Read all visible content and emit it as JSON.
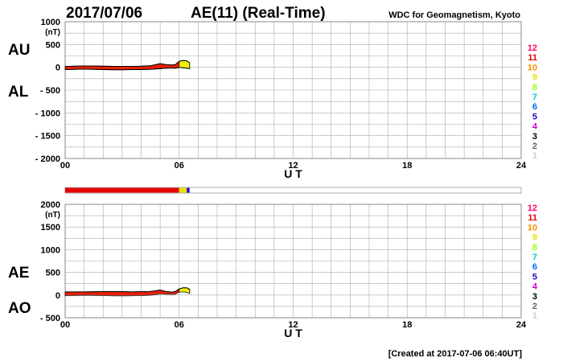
{
  "header": {
    "date": "2017/07/06",
    "title": "AE(11) (Real-Time)",
    "source": "WDC for Geomagnetism, Kyoto"
  },
  "footer": {
    "created": "[Created at 2017-07-06 06:40UT]"
  },
  "legend": {
    "labels": [
      "12",
      "11",
      "10",
      "9",
      "8",
      "7",
      "6",
      "5",
      "4",
      "3",
      "2",
      "1"
    ],
    "colors": [
      "#ff0066",
      "#e60000",
      "#ff8c00",
      "#e6e600",
      "#99ff00",
      "#00cccc",
      "#0066ff",
      "#3300cc",
      "#cc00cc",
      "#000000",
      "#666666",
      "#cccccc"
    ]
  },
  "chart_data": [
    {
      "type": "area",
      "xlabel": "U T",
      "unit": "(nT)",
      "x_ticks": [
        "00",
        "06",
        "12",
        "18",
        "24"
      ],
      "xlim": [
        0,
        24
      ],
      "ylim": [
        -2000,
        1000
      ],
      "y_ticks": [
        1000,
        500,
        0,
        -500,
        -1000,
        -1500,
        -2000
      ],
      "y_tick_labels": [
        "1000",
        "500",
        "0",
        "- 500",
        "- 1000",
        "- 1500",
        "- 2000"
      ],
      "grid": true,
      "side_labels": [
        "AU",
        "AL"
      ],
      "series": [
        {
          "name": "AU",
          "x": [
            0.0,
            0.5,
            1.0,
            1.5,
            2.0,
            2.5,
            3.0,
            3.5,
            4.0,
            4.5,
            5.0,
            5.3,
            5.6,
            5.8,
            6.0,
            6.2,
            6.4,
            6.55
          ],
          "values": [
            20,
            25,
            30,
            28,
            25,
            22,
            20,
            20,
            25,
            35,
            80,
            60,
            50,
            60,
            130,
            150,
            140,
            100
          ]
        },
        {
          "name": "AL",
          "x": [
            0.0,
            0.5,
            1.0,
            1.5,
            2.0,
            2.5,
            3.0,
            3.5,
            4.0,
            4.5,
            5.0,
            5.3,
            5.6,
            5.8,
            6.0,
            6.2,
            6.4,
            6.55
          ],
          "values": [
            -50,
            -45,
            -40,
            -45,
            -50,
            -55,
            -55,
            -50,
            -50,
            -45,
            -30,
            -20,
            -15,
            -20,
            -5,
            -10,
            -20,
            -30
          ]
        }
      ]
    },
    {
      "type": "area",
      "xlabel": "U T",
      "unit": "(nT)",
      "x_ticks": [
        "00",
        "06",
        "12",
        "18",
        "24"
      ],
      "xlim": [
        0,
        24
      ],
      "ylim": [
        -500,
        2000
      ],
      "y_ticks": [
        2000,
        1500,
        1000,
        500,
        0,
        -500
      ],
      "y_tick_labels": [
        "2000",
        "1500",
        "1000",
        "500",
        "0",
        "- 500"
      ],
      "grid": true,
      "side_labels": [
        "AE",
        "AO"
      ],
      "series": [
        {
          "name": "AE",
          "x": [
            0.0,
            0.5,
            1.0,
            1.5,
            2.0,
            2.5,
            3.0,
            3.5,
            4.0,
            4.5,
            5.0,
            5.3,
            5.6,
            5.8,
            6.0,
            6.2,
            6.4,
            6.55
          ],
          "values": [
            70,
            70,
            70,
            73,
            75,
            77,
            75,
            70,
            75,
            80,
            110,
            80,
            65,
            80,
            135,
            160,
            160,
            130
          ]
        },
        {
          "name": "AO",
          "x": [
            0.0,
            0.5,
            1.0,
            1.5,
            2.0,
            2.5,
            3.0,
            3.5,
            4.0,
            4.5,
            5.0,
            5.3,
            5.6,
            5.8,
            6.0,
            6.2,
            6.4,
            6.55
          ],
          "values": [
            -15,
            -10,
            -5,
            -8,
            -12,
            -16,
            -17,
            -15,
            -12,
            -5,
            25,
            20,
            17,
            20,
            62,
            70,
            60,
            35
          ]
        }
      ]
    }
  ],
  "station_bar": {
    "segments": [
      {
        "start": 0.0,
        "end": 6.0,
        "count": "11"
      },
      {
        "start": 6.0,
        "end": 6.4,
        "count": "9"
      },
      {
        "start": 6.4,
        "end": 6.55,
        "count": "5"
      }
    ]
  }
}
